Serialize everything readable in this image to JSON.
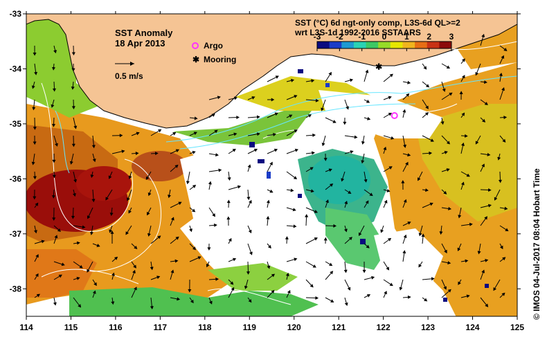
{
  "map": {
    "title_line1": "SST Anomaly",
    "title_line2": "18 Apr 2013",
    "velocity_scale_label": "0.5 m/s",
    "product_line1": "SST (°C) 6d ngt-only comp, L3S-6d QL>=2",
    "product_line2": "wrt L3S-1d 1992-2016 SSTAARS",
    "credit": "© IMOS 04-Jul-2017 08:04 Hobart Time",
    "land_color": "#f5c494",
    "background_color": "#ffffff"
  },
  "legend": {
    "argo_label": "Argo",
    "mooring_label": "Mooring",
    "argo_color": "#ff33ff",
    "mooring_color": "#000000"
  },
  "colorbar": {
    "ticks": [
      "-3",
      "-2",
      "-1",
      "0",
      "1",
      "2",
      "3"
    ],
    "min": -3,
    "max": 3,
    "colors": [
      "#0a0a80",
      "#1a3cc8",
      "#1e9ad2",
      "#2ad2b4",
      "#3cc864",
      "#96dc28",
      "#e6e600",
      "#f0b41e",
      "#e66e14",
      "#c83214",
      "#8c0a0a"
    ]
  },
  "axes": {
    "x_ticks": [
      "114",
      "115",
      "116",
      "117",
      "118",
      "119",
      "120",
      "121",
      "122",
      "123",
      "124",
      "125"
    ],
    "y_ticks": [
      "-33",
      "-34",
      "-35",
      "-36",
      "-37",
      "-38"
    ],
    "lon_range": [
      114,
      125
    ],
    "lat_range": [
      -38.5,
      -33
    ]
  },
  "markers": {
    "argo_lon": 122.25,
    "argo_lat": -34.85,
    "mooring_lon": 121.9,
    "mooring_lat": -33.95
  }
}
